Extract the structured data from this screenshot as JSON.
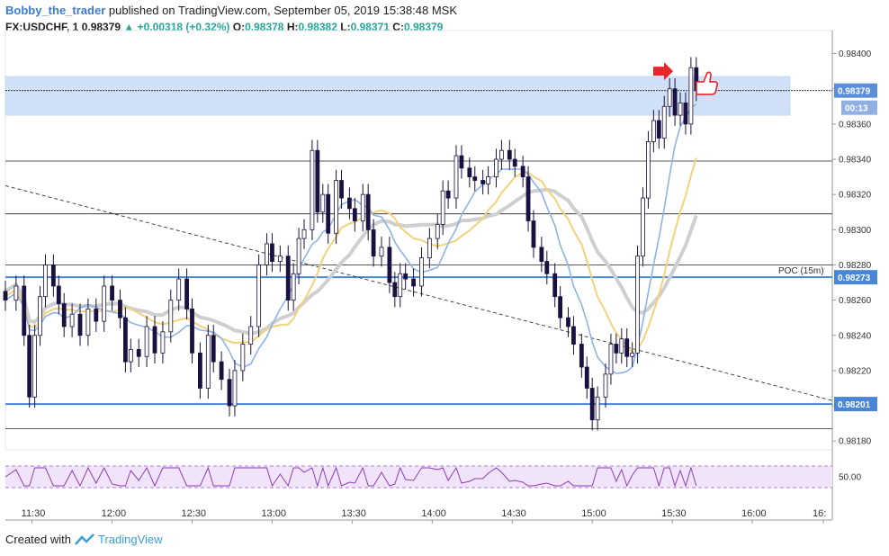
{
  "header": {
    "author": "Bobby_the_trader",
    "published_text": "published on TradingView.com, September 05, 2019 15:38:48 MSK",
    "symbol": "FX:USDCHF, 1",
    "last": "0.98379",
    "arrow": "▲",
    "change": "+0.00318 (+0.32%)",
    "o_label": "O:",
    "o": "0.98378",
    "h_label": "H:",
    "h": "0.98382",
    "l_label": "L:",
    "l": "0.98371",
    "c_label": "C:",
    "c": "0.98379"
  },
  "footer": {
    "created_with": "Created with",
    "brand": "TradingView",
    "logo_icon": "tradingview-logo-icon"
  },
  "colors": {
    "up_candle": "#ffffff",
    "down_candle": "#1a1140",
    "support_line": "#4a86d8",
    "zone": "#cfe0f7",
    "ma_blue": "#8fb3e6",
    "ma_yellow": "#f2d27a",
    "ma_gray": "#cfcfcf",
    "rsi": "#8b3fb5",
    "rsi_band": "#f1e4fa",
    "annotation_red": "#e8252b"
  },
  "chart_data": {
    "type": "candlestick",
    "symbol": "FX:USDCHF",
    "timeframe_minutes": 1,
    "y_ticks": [
      "0.98400",
      "0.98380",
      "0.98360",
      "0.98340",
      "0.98320",
      "0.98300",
      "0.98280",
      "0.98260",
      "0.98240",
      "0.98220",
      "0.98200",
      "0.98180"
    ],
    "ylim": [
      0.98175,
      0.9841
    ],
    "x_ticks": [
      "11:30",
      "12:00",
      "12:30",
      "13:00",
      "13:30",
      "14:00",
      "14:30",
      "15:00",
      "15:30",
      "16:00",
      "16:"
    ],
    "xlim": [
      "11:20",
      "16:30"
    ],
    "price_labels": {
      "current": "0.98379",
      "countdown": "00:13",
      "poc_text": "POC (15m)",
      "poc": "0.98273",
      "support": "0.98201"
    },
    "resistance_zone": [
      0.98365,
      0.98387
    ],
    "horizontal_lines": [
      0.98379,
      0.98339,
      0.98309,
      0.9828,
      0.98187
    ],
    "blue_levels": [
      0.98273,
      0.98201
    ],
    "trendline": [
      [
        "11:20",
        0.98325
      ],
      [
        "16:30",
        0.98203
      ]
    ],
    "ohlc_closes": [
      [
        "11:20",
        0.9826
      ],
      [
        "11:24",
        0.98268
      ],
      [
        "11:27",
        0.9824
      ],
      [
        "11:29",
        0.98205
      ],
      [
        "11:31",
        0.9824
      ],
      [
        "11:33",
        0.98262
      ],
      [
        "11:35",
        0.9828
      ],
      [
        "11:38",
        0.98268
      ],
      [
        "11:40",
        0.98258
      ],
      [
        "11:42",
        0.98245
      ],
      [
        "11:45",
        0.98252
      ],
      [
        "11:48",
        0.9824
      ],
      [
        "11:51",
        0.98255
      ],
      [
        "11:54",
        0.98248
      ],
      [
        "11:57",
        0.98268
      ],
      [
        "12:00",
        0.9826
      ],
      [
        "12:03",
        0.9825
      ],
      [
        "12:05",
        0.98225
      ],
      [
        "12:07",
        0.98232
      ],
      [
        "12:10",
        0.98228
      ],
      [
        "12:13",
        0.98245
      ],
      [
        "12:16",
        0.9823
      ],
      [
        "12:19",
        0.98242
      ],
      [
        "12:22",
        0.9826
      ],
      [
        "12:25",
        0.98272
      ],
      [
        "12:28",
        0.98255
      ],
      [
        "12:30",
        0.9823
      ],
      [
        "12:33",
        0.9821
      ],
      [
        "12:36",
        0.9824
      ],
      [
        "12:38",
        0.98225
      ],
      [
        "12:41",
        0.98215
      ],
      [
        "12:44",
        0.982
      ],
      [
        "12:46",
        0.9822
      ],
      [
        "12:49",
        0.98235
      ],
      [
        "12:52",
        0.98245
      ],
      [
        "12:55",
        0.9828
      ],
      [
        "12:58",
        0.98292
      ],
      [
        "13:00",
        0.98282
      ],
      [
        "13:03",
        0.98285
      ],
      [
        "13:06",
        0.9826
      ],
      [
        "13:08",
        0.98275
      ],
      [
        "13:10",
        0.98295
      ],
      [
        "13:12",
        0.983
      ],
      [
        "13:15",
        0.98345
      ],
      [
        "13:17",
        0.9831
      ],
      [
        "13:19",
        0.9832
      ],
      [
        "13:21",
        0.98298
      ],
      [
        "13:24",
        0.98328
      ],
      [
        "13:26",
        0.98318
      ],
      [
        "13:29",
        0.98312
      ],
      [
        "13:31",
        0.98305
      ],
      [
        "13:34",
        0.9832
      ],
      [
        "13:36",
        0.983
      ],
      [
        "13:38",
        0.98285
      ],
      [
        "13:41",
        0.9829
      ],
      [
        "13:44",
        0.9827
      ],
      [
        "13:46",
        0.98262
      ],
      [
        "13:48",
        0.98275
      ],
      [
        "13:50",
        0.98272
      ],
      [
        "13:53",
        0.98268
      ],
      [
        "13:56",
        0.98284
      ],
      [
        "13:59",
        0.98295
      ],
      [
        "14:02",
        0.98303
      ],
      [
        "14:04",
        0.98322
      ],
      [
        "14:06",
        0.98318
      ],
      [
        "14:09",
        0.98342
      ],
      [
        "14:11",
        0.98335
      ],
      [
        "14:14",
        0.9833
      ],
      [
        "14:16",
        0.98328
      ],
      [
        "14:19",
        0.98326
      ],
      [
        "14:21",
        0.9833
      ],
      [
        "14:24",
        0.9834
      ],
      [
        "14:26",
        0.98345
      ],
      [
        "14:29",
        0.9834
      ],
      [
        "14:31",
        0.98336
      ],
      [
        "14:34",
        0.9833
      ],
      [
        "14:36",
        0.98305
      ],
      [
        "14:38",
        0.9829
      ],
      [
        "14:41",
        0.98282
      ],
      [
        "14:43",
        0.98275
      ],
      [
        "14:46",
        0.98262
      ],
      [
        "14:48",
        0.9825
      ],
      [
        "14:51",
        0.98245
      ],
      [
        "14:53",
        0.98235
      ],
      [
        "14:56",
        0.98222
      ],
      [
        "14:58",
        0.9821
      ],
      [
        "15:00",
        0.98192
      ],
      [
        "15:02",
        0.98205
      ],
      [
        "15:05",
        0.98218
      ],
      [
        "15:07",
        0.98235
      ],
      [
        "15:09",
        0.9823
      ],
      [
        "15:11",
        0.98238
      ],
      [
        "15:13",
        0.98228
      ],
      [
        "15:15",
        0.9823
      ],
      [
        "15:17",
        0.98285
      ],
      [
        "15:19",
        0.98318
      ],
      [
        "15:21",
        0.9835
      ],
      [
        "15:23",
        0.98362
      ],
      [
        "15:25",
        0.98352
      ],
      [
        "15:27",
        0.9837
      ],
      [
        "15:29",
        0.9838
      ],
      [
        "15:31",
        0.98365
      ],
      [
        "15:33",
        0.98372
      ],
      [
        "15:35",
        0.9836
      ],
      [
        "15:37",
        0.98392
      ],
      [
        "15:39",
        0.98379
      ]
    ],
    "rsi": {
      "label": "50.00",
      "band": [
        30,
        70
      ]
    }
  }
}
